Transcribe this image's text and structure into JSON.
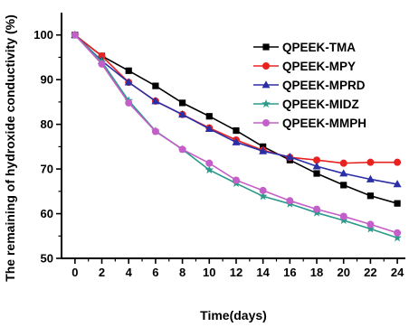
{
  "chart_data": {
    "type": "line",
    "title": "",
    "xlabel": "Time(days)",
    "ylabel": "The remaining of hydroxide conductivity (%)",
    "x": [
      0,
      2,
      4,
      6,
      8,
      10,
      12,
      14,
      16,
      18,
      20,
      22,
      24
    ],
    "xlim": [
      -1,
      24.6
    ],
    "ylim": [
      50,
      105
    ],
    "xticks": [
      "0",
      "2",
      "4",
      "6",
      "8",
      "10",
      "12",
      "14",
      "16",
      "18",
      "20",
      "22",
      "24"
    ],
    "yticks": [
      "50",
      "60",
      "70",
      "80",
      "90",
      "100"
    ],
    "grid": false,
    "legend_position": "top-right",
    "series": [
      {
        "name": "QPEEK-TMA",
        "color": "#000000",
        "marker": "square",
        "values": [
          100,
          95.3,
          92.0,
          88.6,
          84.8,
          81.8,
          78.6,
          75.0,
          72.0,
          69.0,
          66.4,
          64.0,
          62.3
        ]
      },
      {
        "name": "QPEEK-MPY",
        "color": "#e8231f",
        "marker": "circle",
        "values": [
          100,
          95.3,
          89.4,
          85.2,
          82.2,
          79.2,
          76.5,
          74.2,
          72.6,
          72.0,
          71.3,
          71.5,
          71.5
        ]
      },
      {
        "name": "QPEEK-MPRD",
        "color": "#2b2fa6",
        "marker": "triangle",
        "values": [
          100,
          94.2,
          89.4,
          85.2,
          82.2,
          79.0,
          76.0,
          74.0,
          72.7,
          70.6,
          69.0,
          67.7,
          66.6
        ]
      },
      {
        "name": "QPEEK-MIDZ",
        "color": "#2a9a8a",
        "marker": "star",
        "values": [
          100,
          94.0,
          85.3,
          78.5,
          74.4,
          69.8,
          66.8,
          63.9,
          62.2,
          60.2,
          58.5,
          56.6,
          54.6
        ]
      },
      {
        "name": "QPEEK-MMPH",
        "color": "#c45ec8",
        "marker": "circle",
        "values": [
          100,
          93.5,
          84.8,
          78.4,
          74.4,
          71.3,
          67.5,
          65.2,
          62.9,
          61.0,
          59.4,
          57.6,
          55.7
        ]
      }
    ]
  }
}
